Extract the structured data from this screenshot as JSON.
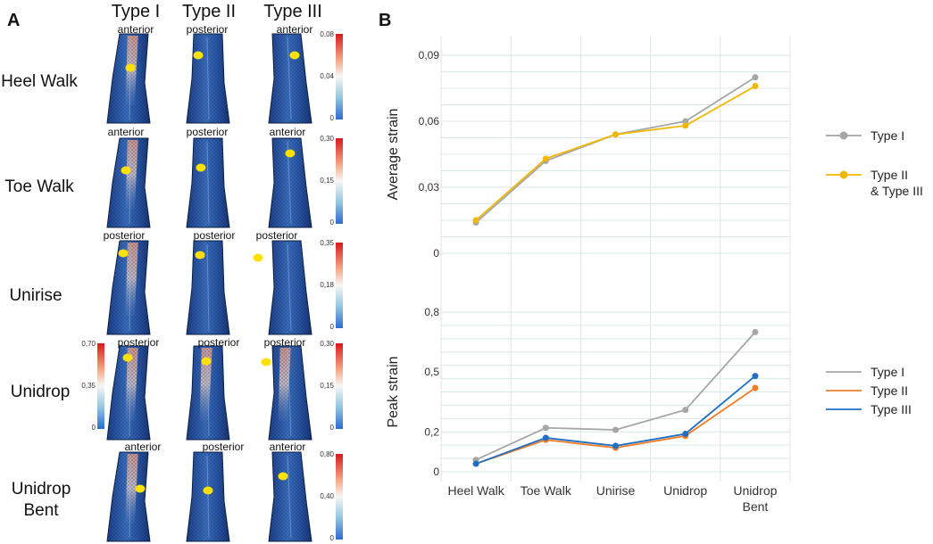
{
  "panel_a": {
    "letter": "A",
    "types": [
      "Type I",
      "Type II",
      "Type III"
    ],
    "rows": [
      {
        "label_lines": [
          "Heel Walk"
        ],
        "views": [
          "anterior",
          "posterior",
          "anterior"
        ],
        "scale": [
          "0,08",
          "0,04",
          "0"
        ]
      },
      {
        "label_lines": [
          "Toe Walk"
        ],
        "views": [
          "anterior",
          "posterior",
          "anterior"
        ],
        "scale": [
          "0,30",
          "0,15",
          "0"
        ]
      },
      {
        "label_lines": [
          "Unirise"
        ],
        "views": [
          "posterior",
          "posterior",
          "posterior"
        ],
        "scale": [
          "0,35",
          "0,18",
          "0"
        ]
      },
      {
        "label_lines": [
          "Unidrop"
        ],
        "views": [
          "posterior",
          "posterior",
          "posterior"
        ],
        "scale": [
          "0,30",
          "0,15",
          "0"
        ],
        "scale_left": [
          "0,70",
          "0,35",
          "0"
        ]
      },
      {
        "label_lines": [
          "Unidrop",
          "Bent"
        ],
        "views": [
          "anterior",
          "posterior",
          "anterior"
        ],
        "scale": [
          "0,80",
          "0,40",
          "0"
        ]
      }
    ]
  },
  "panel_b": {
    "letter": "B",
    "colors": {
      "type1": "#a6a6a6",
      "type23": "#f2b705",
      "type2": "#f07d26",
      "type3": "#1f6fc4",
      "grid": "#dbe6e6"
    },
    "categories": [
      "Heel Walk",
      "Toe Walk",
      "Unirise",
      "Unidrop",
      "Unidrop Bent"
    ],
    "category_lines": [
      [
        "Heel Walk"
      ],
      [
        "Toe Walk"
      ],
      [
        "Unirise"
      ],
      [
        "Unidrop"
      ],
      [
        "Unidrop",
        "Bent"
      ]
    ]
  },
  "chart_data": [
    {
      "type": "line",
      "ylabel": "Average strain",
      "ylim": [
        0,
        0.09
      ],
      "yticks": [
        0,
        0.03,
        0.06,
        0.09
      ],
      "ytick_labels": [
        "0",
        "0,03",
        "0,06",
        "0,09"
      ],
      "categories": [
        "Heel Walk",
        "Toe Walk",
        "Unirise",
        "Unidrop",
        "Unidrop Bent"
      ],
      "legend_position": "right",
      "series": [
        {
          "name": "Type I",
          "legend_lines": [
            "Type I"
          ],
          "color": "#a6a6a6",
          "values": [
            0.014,
            0.042,
            0.054,
            0.06,
            0.08
          ]
        },
        {
          "name": "Type II & Type III",
          "legend_lines": [
            "Type II",
            "& Type III"
          ],
          "color": "#f2b705",
          "values": [
            0.015,
            0.043,
            0.054,
            0.058,
            0.076
          ]
        }
      ]
    },
    {
      "type": "line",
      "ylabel": "Peak strain",
      "ylim": [
        0,
        0.8
      ],
      "yticks": [
        0,
        0.2,
        0.5,
        0.8
      ],
      "ytick_labels": [
        "0",
        "0,2",
        "0,5",
        "0,8"
      ],
      "categories": [
        "Heel Walk",
        "Toe Walk",
        "Unirise",
        "Unidrop",
        "Unidrop Bent"
      ],
      "legend_position": "right",
      "series": [
        {
          "name": "Type I",
          "legend_lines": [
            "Type I"
          ],
          "color": "#a6a6a6",
          "values": [
            0.06,
            0.22,
            0.21,
            0.31,
            0.7
          ]
        },
        {
          "name": "Type II",
          "legend_lines": [
            "Type II"
          ],
          "color": "#f07d26",
          "values": [
            0.04,
            0.16,
            0.12,
            0.18,
            0.42
          ]
        },
        {
          "name": "Type III",
          "legend_lines": [
            "Type III"
          ],
          "color": "#1f6fc4",
          "values": [
            0.04,
            0.17,
            0.13,
            0.19,
            0.48
          ]
        }
      ]
    }
  ]
}
